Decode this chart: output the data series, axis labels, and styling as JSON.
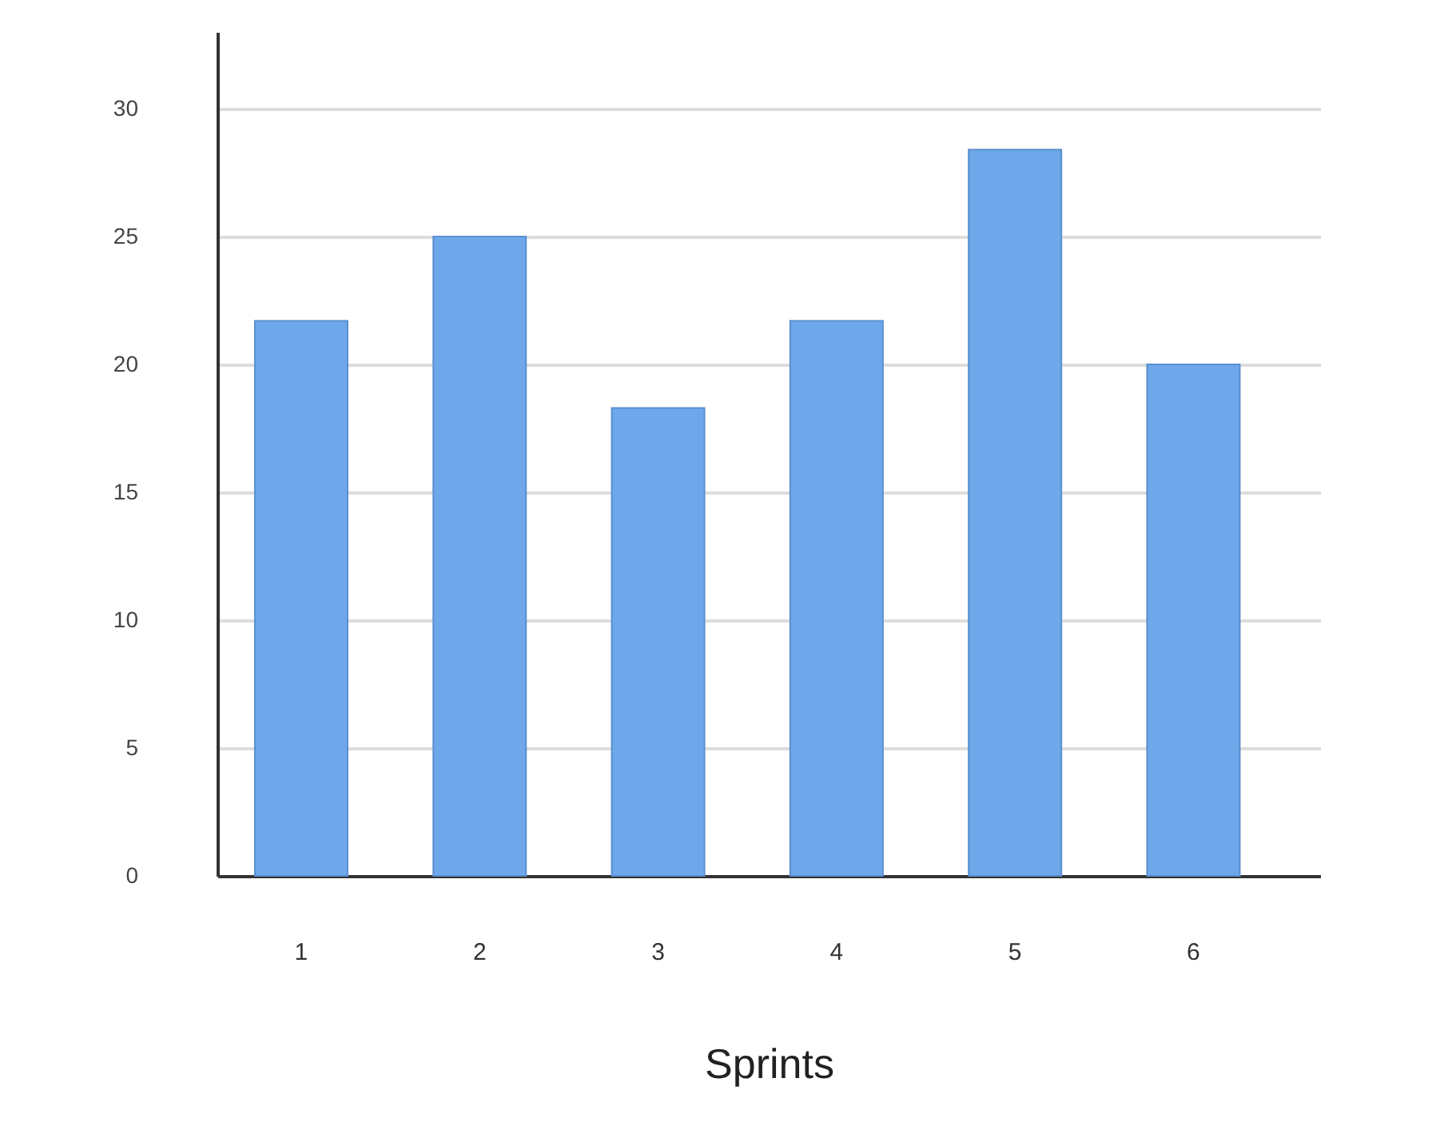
{
  "chart_data": {
    "type": "bar",
    "xlabel": "Sprints",
    "categories": [
      "1",
      "2",
      "3",
      "4",
      "5",
      "6"
    ],
    "values": [
      21.7,
      25,
      18.3,
      21.7,
      28.4,
      20
    ],
    "color": "#6fa8ea",
    "ylim": [
      0,
      33
    ],
    "yticks": [
      0,
      5,
      10,
      15,
      20,
      25,
      30
    ],
    "grid": "y"
  }
}
